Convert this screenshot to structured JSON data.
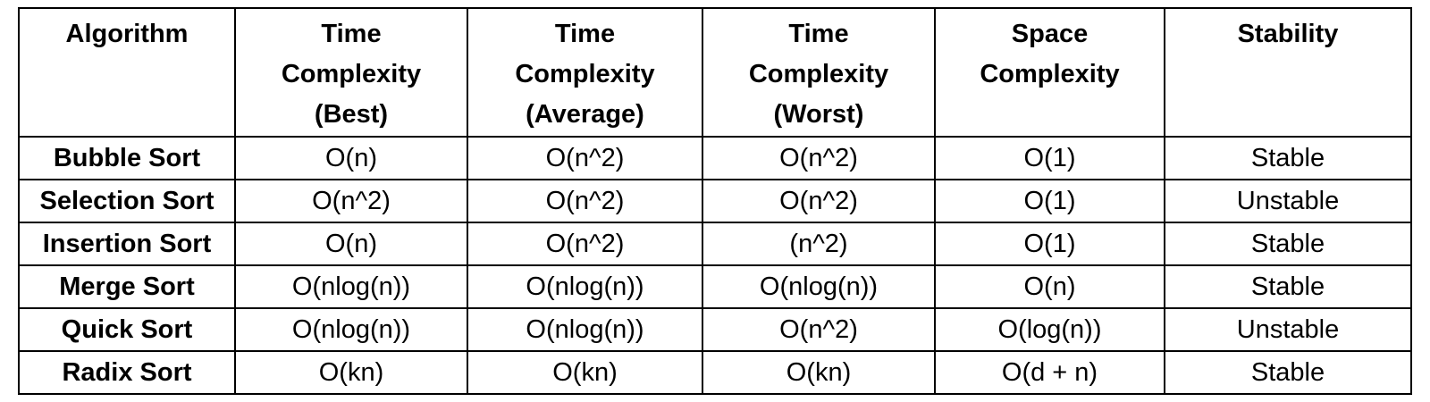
{
  "table": {
    "header": [
      "Algorithm",
      "Time Complexity (Best)",
      "Time Complexity (Average)",
      "Time Complexity (Worst)",
      "Space Complexity",
      "Stability"
    ],
    "rows": [
      [
        "Bubble Sort",
        "O(n)",
        "O(n^2)",
        "O(n^2)",
        "O(1)",
        "Stable"
      ],
      [
        "Selection Sort",
        "O(n^2)",
        "O(n^2)",
        "O(n^2)",
        "O(1)",
        "Unstable"
      ],
      [
        "Insertion Sort",
        "O(n)",
        "O(n^2)",
        "(n^2)",
        "O(1)",
        "Stable"
      ],
      [
        "Merge Sort",
        "O(nlog(n))",
        "O(nlog(n))",
        "O(nlog(n))",
        "O(n)",
        "Stable"
      ],
      [
        "Quick Sort",
        "O(nlog(n))",
        "O(nlog(n))",
        "O(n^2)",
        "O(log(n))",
        "Unstable"
      ],
      [
        "Radix Sort",
        "O(kn)",
        "O(kn)",
        "O(kn)",
        "O(d + n)",
        "Stable"
      ]
    ]
  }
}
